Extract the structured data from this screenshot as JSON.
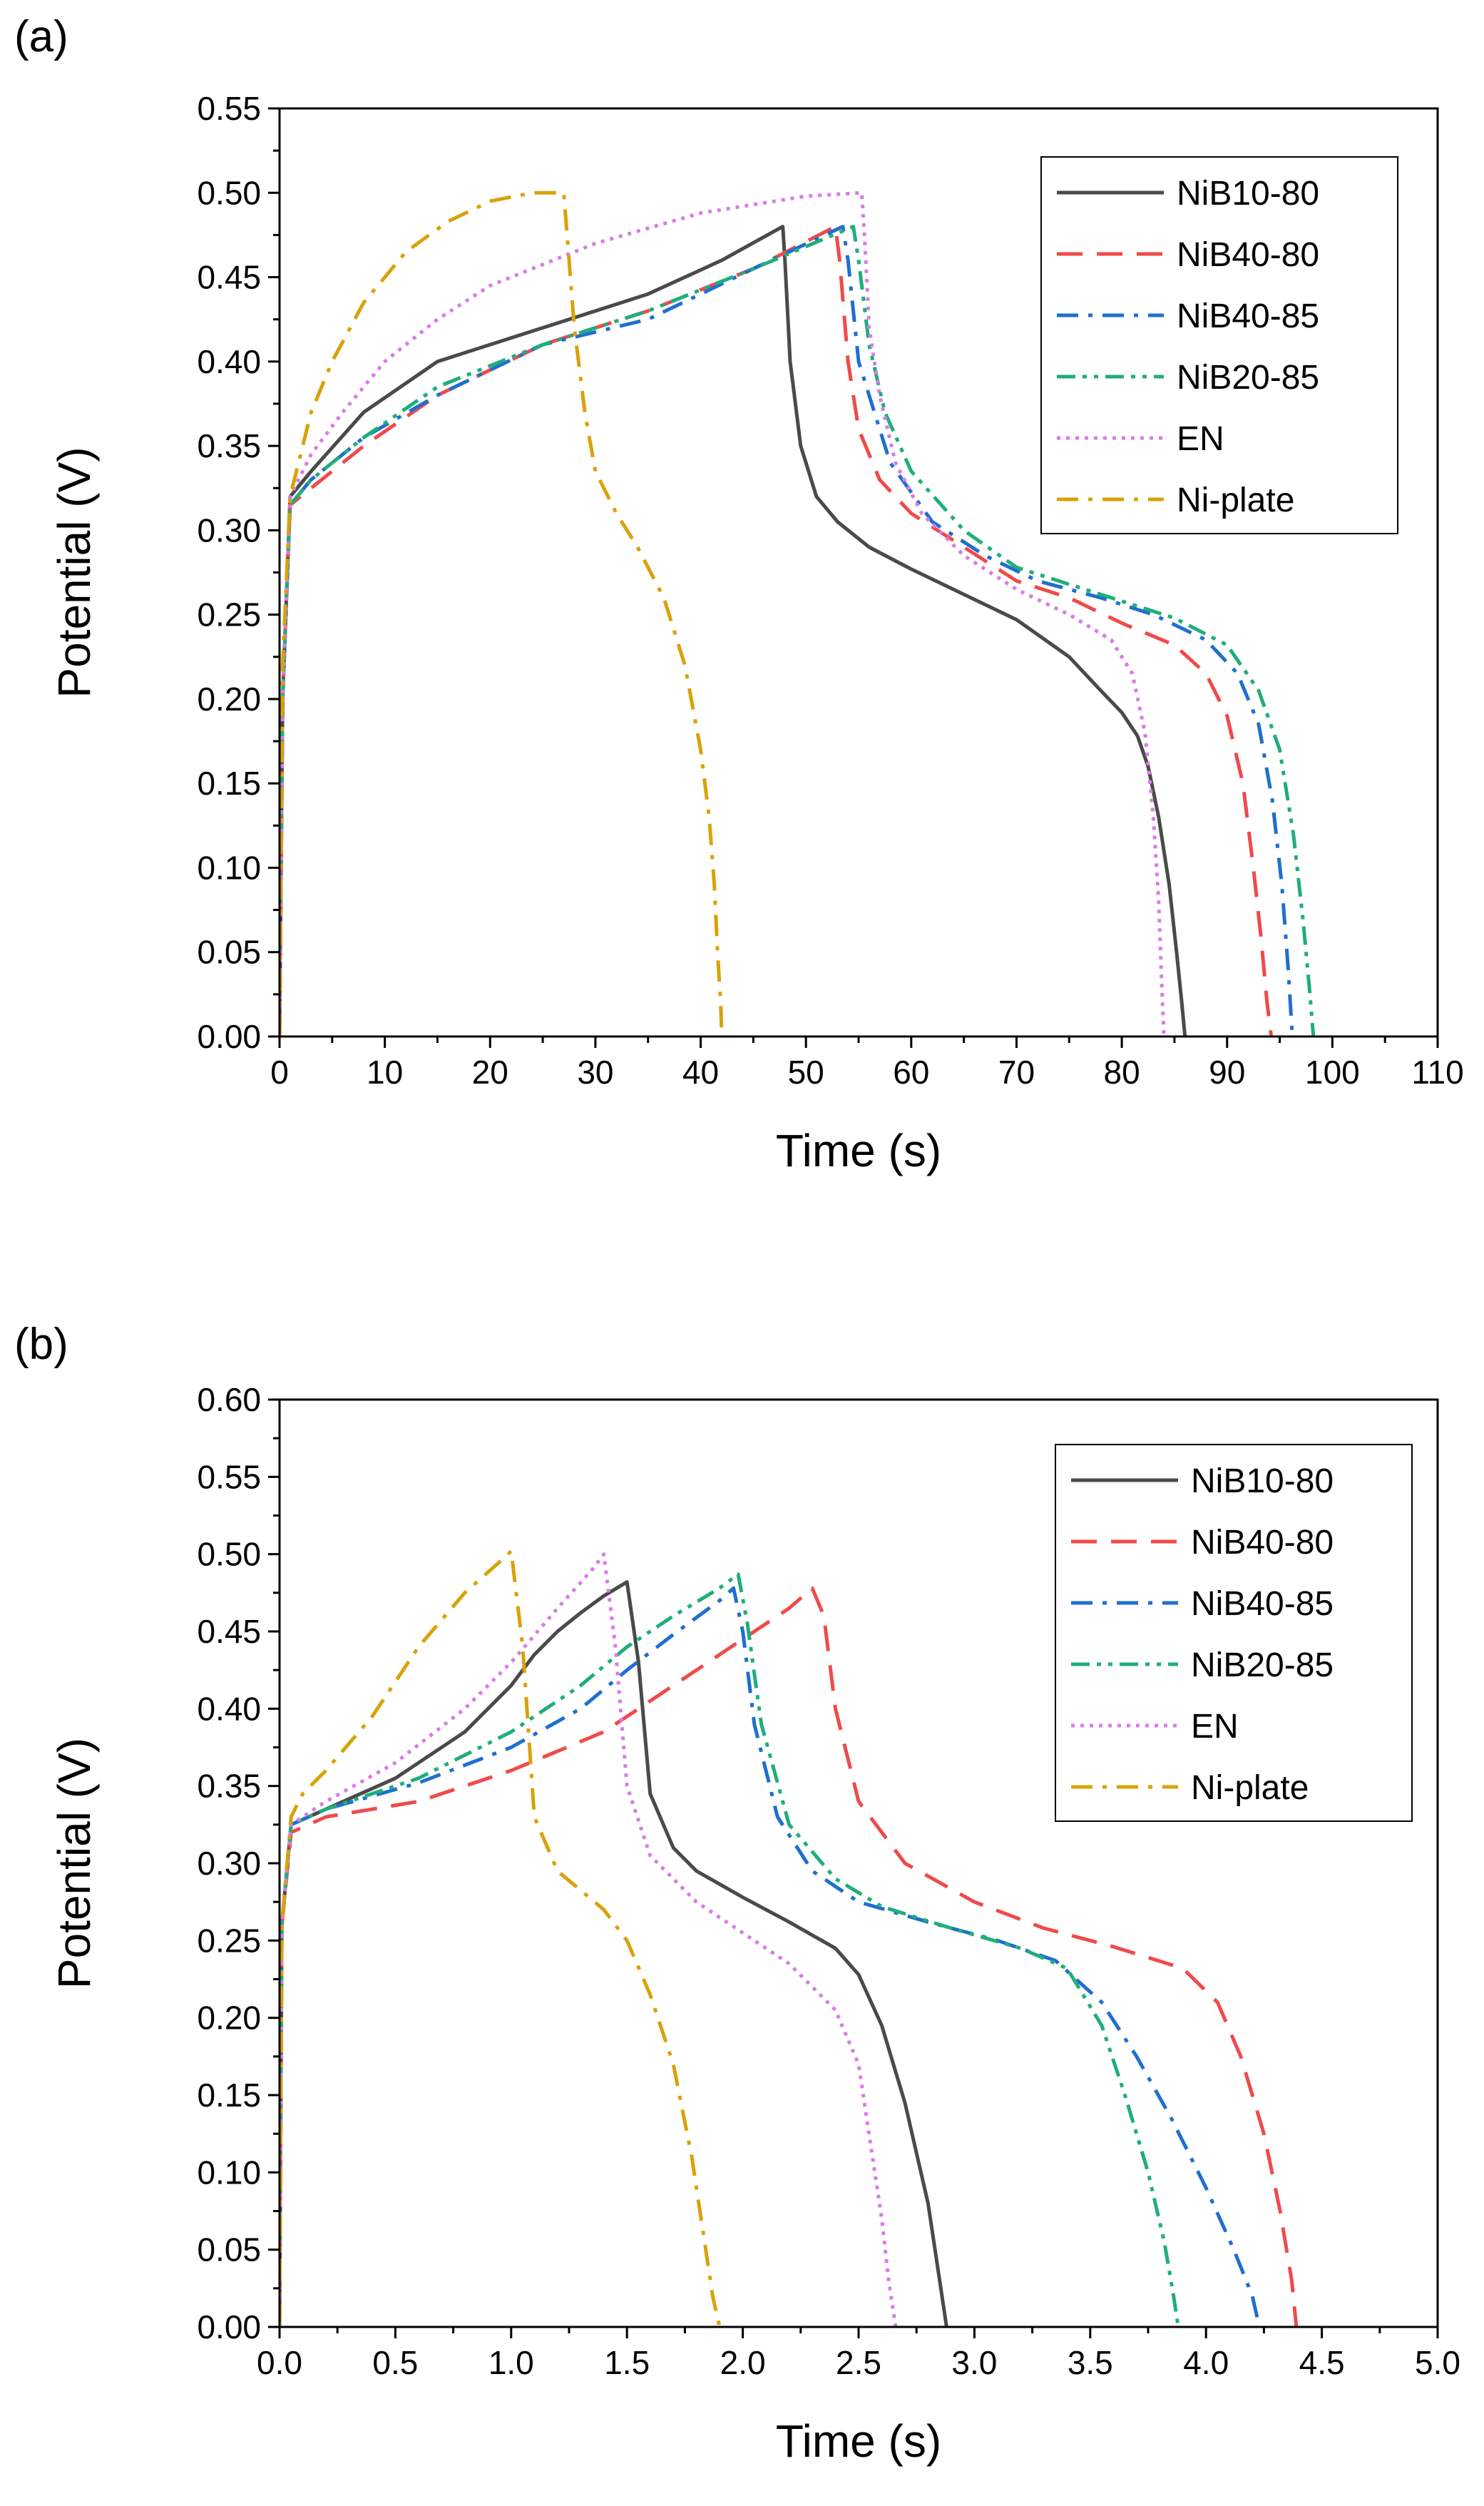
{
  "figure": {
    "panels": [
      {
        "label": "(a)"
      },
      {
        "label": "(b)"
      }
    ]
  },
  "colors": {
    "NiB10-80": "#4a4a4a",
    "NiB40-80": "#f04a4a",
    "NiB40-85": "#1e6fd0",
    "NiB20-85": "#1fae7a",
    "EN": "#d97ce6",
    "Ni-plate": "#d9a20a"
  },
  "chart_data": [
    {
      "type": "line",
      "panel": "(a)",
      "xlabel": "Time (s)",
      "ylabel": "Potential (V)",
      "xlim": [
        0,
        110
      ],
      "ylim": [
        0,
        0.55
      ],
      "xticks": [
        "0",
        "10",
        "20",
        "30",
        "40",
        "50",
        "60",
        "70",
        "80",
        "90",
        "100",
        "110"
      ],
      "yticks": [
        "0.00",
        "0.05",
        "0.10",
        "0.15",
        "0.20",
        "0.25",
        "0.30",
        "0.35",
        "0.40",
        "0.45",
        "0.50",
        "0.55"
      ],
      "legend": "top-right",
      "series": [
        {
          "name": "NiB10-80",
          "dash": "solid",
          "x": [
            0,
            0.3,
            1,
            3,
            8,
            15,
            25,
            35,
            42,
            47.8,
            48,
            48.5,
            49.5,
            51,
            53,
            56,
            60,
            65,
            70,
            75,
            78,
            80,
            81.5,
            82.5,
            83.5,
            84.5,
            85.2,
            85.7,
            86
          ],
          "y": [
            0,
            0.2,
            0.32,
            0.335,
            0.37,
            0.4,
            0.42,
            0.44,
            0.46,
            0.48,
            0.46,
            0.4,
            0.35,
            0.32,
            0.305,
            0.29,
            0.277,
            0.262,
            0.247,
            0.225,
            0.205,
            0.192,
            0.178,
            0.16,
            0.13,
            0.09,
            0.05,
            0.02,
            0
          ]
        },
        {
          "name": "NiB40-80",
          "dash": "long-dash",
          "x": [
            0,
            0.3,
            1,
            3,
            8,
            15,
            25,
            35,
            45,
            52.8,
            53.2,
            54,
            55,
            57,
            60,
            65,
            70,
            75,
            80,
            85,
            88,
            90,
            91.5,
            92.5,
            93.2,
            93.8,
            94.2
          ],
          "y": [
            0,
            0.2,
            0.315,
            0.325,
            0.35,
            0.38,
            0.41,
            0.43,
            0.455,
            0.48,
            0.46,
            0.4,
            0.36,
            0.33,
            0.31,
            0.29,
            0.27,
            0.26,
            0.245,
            0.232,
            0.215,
            0.19,
            0.15,
            0.1,
            0.06,
            0.02,
            0
          ]
        },
        {
          "name": "NiB40-85",
          "dash": "dash-dot",
          "x": [
            0,
            0.3,
            1,
            3,
            8,
            15,
            25,
            35,
            45,
            53.5,
            54,
            55,
            56.5,
            58,
            62,
            67,
            72,
            78,
            83,
            88,
            91,
            93,
            94.3,
            95.2,
            95.8,
            96.2
          ],
          "y": [
            0,
            0.2,
            0.315,
            0.33,
            0.355,
            0.38,
            0.41,
            0.425,
            0.455,
            0.48,
            0.46,
            0.4,
            0.37,
            0.34,
            0.305,
            0.285,
            0.27,
            0.26,
            0.25,
            0.235,
            0.215,
            0.185,
            0.14,
            0.09,
            0.04,
            0
          ]
        },
        {
          "name": "NiB20-85",
          "dash": "dash-dot-dot",
          "x": [
            0,
            0.3,
            1,
            3,
            8,
            15,
            25,
            35,
            45,
            54.5,
            55,
            56,
            57.5,
            60,
            65,
            70,
            75,
            80,
            85,
            90,
            93,
            95,
            96.3,
            97.2,
            97.8,
            98.2
          ],
          "y": [
            0,
            0.2,
            0.315,
            0.33,
            0.355,
            0.385,
            0.41,
            0.43,
            0.455,
            0.48,
            0.46,
            0.41,
            0.37,
            0.335,
            0.3,
            0.278,
            0.268,
            0.258,
            0.248,
            0.232,
            0.205,
            0.17,
            0.12,
            0.07,
            0.03,
            0
          ]
        },
        {
          "name": "EN",
          "dash": "dot",
          "x": [
            0,
            0.3,
            1,
            3,
            6,
            10,
            15,
            20,
            30,
            40,
            50,
            55.3,
            55.6,
            56,
            57,
            58.5,
            61,
            65,
            70,
            75,
            79,
            81,
            82.2,
            83,
            83.5,
            83.8,
            84
          ],
          "y": [
            0,
            0.2,
            0.32,
            0.345,
            0.37,
            0.4,
            0.425,
            0.445,
            0.47,
            0.488,
            0.498,
            0.5,
            0.47,
            0.42,
            0.38,
            0.34,
            0.31,
            0.285,
            0.265,
            0.25,
            0.235,
            0.215,
            0.18,
            0.13,
            0.08,
            0.03,
            0
          ]
        },
        {
          "name": "Ni-plate",
          "dash": "dash-dot",
          "x": [
            0,
            0.3,
            1,
            3,
            5,
            8,
            12,
            16,
            20,
            24,
            26,
            27,
            27.5,
            28,
            29,
            30,
            32,
            34,
            36.5,
            38.5,
            40,
            40.8,
            41.3,
            41.6,
            41.9,
            42
          ],
          "y": [
            0,
            0.22,
            0.32,
            0.37,
            0.4,
            0.435,
            0.465,
            0.483,
            0.495,
            0.5,
            0.5,
            0.5,
            0.46,
            0.42,
            0.37,
            0.335,
            0.31,
            0.29,
            0.26,
            0.22,
            0.17,
            0.13,
            0.09,
            0.05,
            0.02,
            0
          ]
        }
      ]
    },
    {
      "type": "line",
      "panel": "(b)",
      "xlabel": "Time (s)",
      "ylabel": "Potential (V)",
      "xlim": [
        0,
        5.0
      ],
      "ylim": [
        0,
        0.6
      ],
      "xticks": [
        "0.0",
        "0.5",
        "1.0",
        "1.5",
        "2.0",
        "2.5",
        "3.0",
        "3.5",
        "4.0",
        "4.5",
        "5.0"
      ],
      "yticks": [
        "0.00",
        "0.05",
        "0.10",
        "0.15",
        "0.20",
        "0.25",
        "0.30",
        "0.35",
        "0.40",
        "0.45",
        "0.50",
        "0.55",
        "0.60"
      ],
      "legend": "top-right",
      "series": [
        {
          "name": "NiB10-80",
          "dash": "solid",
          "x": [
            0,
            0.01,
            0.05,
            0.2,
            0.5,
            0.8,
            1.0,
            1.1,
            1.2,
            1.3,
            1.4,
            1.5,
            1.55,
            1.6,
            1.7,
            1.8,
            2.0,
            2.2,
            2.4,
            2.5,
            2.6,
            2.7,
            2.8,
            2.85,
            2.88
          ],
          "y": [
            0,
            0.26,
            0.325,
            0.335,
            0.355,
            0.385,
            0.415,
            0.435,
            0.45,
            0.462,
            0.473,
            0.482,
            0.43,
            0.345,
            0.31,
            0.295,
            0.278,
            0.262,
            0.245,
            0.228,
            0.195,
            0.145,
            0.08,
            0.03,
            0
          ]
        },
        {
          "name": "NiB40-80",
          "dash": "long-dash",
          "x": [
            0,
            0.01,
            0.05,
            0.2,
            0.6,
            1.0,
            1.4,
            1.6,
            1.8,
            2.0,
            2.2,
            2.3,
            2.35,
            2.4,
            2.5,
            2.7,
            3.0,
            3.3,
            3.6,
            3.9,
            4.05,
            4.15,
            4.25,
            4.32,
            4.37,
            4.39
          ],
          "y": [
            0,
            0.26,
            0.32,
            0.33,
            0.34,
            0.36,
            0.385,
            0.405,
            0.425,
            0.445,
            0.465,
            0.478,
            0.46,
            0.4,
            0.34,
            0.3,
            0.275,
            0.258,
            0.246,
            0.232,
            0.21,
            0.175,
            0.125,
            0.075,
            0.03,
            0
          ]
        },
        {
          "name": "NiB40-85",
          "dash": "dash-dot",
          "x": [
            0,
            0.01,
            0.05,
            0.2,
            0.6,
            1.0,
            1.3,
            1.5,
            1.7,
            1.9,
            1.96,
            2.0,
            2.05,
            2.15,
            2.3,
            2.5,
            2.8,
            3.1,
            3.35,
            3.55,
            3.7,
            3.85,
            4.0,
            4.12,
            4.2,
            4.23
          ],
          "y": [
            0,
            0.26,
            0.325,
            0.335,
            0.352,
            0.375,
            0.4,
            0.425,
            0.448,
            0.47,
            0.478,
            0.45,
            0.39,
            0.33,
            0.295,
            0.275,
            0.262,
            0.25,
            0.237,
            0.21,
            0.175,
            0.135,
            0.09,
            0.05,
            0.02,
            0
          ]
        },
        {
          "name": "NiB20-85",
          "dash": "dash-dot-dot",
          "x": [
            0,
            0.01,
            0.05,
            0.2,
            0.6,
            1.0,
            1.3,
            1.5,
            1.7,
            1.9,
            1.98,
            2.02,
            2.08,
            2.2,
            2.4,
            2.6,
            2.9,
            3.2,
            3.4,
            3.55,
            3.65,
            3.75,
            3.82,
            3.86,
            3.88
          ],
          "y": [
            0,
            0.26,
            0.325,
            0.335,
            0.355,
            0.385,
            0.415,
            0.44,
            0.46,
            0.478,
            0.487,
            0.455,
            0.39,
            0.325,
            0.29,
            0.272,
            0.258,
            0.245,
            0.232,
            0.195,
            0.15,
            0.1,
            0.055,
            0.02,
            0
          ]
        },
        {
          "name": "EN",
          "dash": "dot",
          "x": [
            0,
            0.01,
            0.05,
            0.2,
            0.5,
            0.8,
            1.0,
            1.2,
            1.35,
            1.4,
            1.45,
            1.5,
            1.6,
            1.8,
            2.0,
            2.2,
            2.4,
            2.5,
            2.55,
            2.6,
            2.63,
            2.66
          ],
          "y": [
            0,
            0.26,
            0.325,
            0.34,
            0.365,
            0.4,
            0.43,
            0.465,
            0.49,
            0.5,
            0.44,
            0.35,
            0.305,
            0.275,
            0.255,
            0.235,
            0.205,
            0.17,
            0.12,
            0.07,
            0.03,
            0
          ]
        },
        {
          "name": "Ni-plate",
          "dash": "dash-dot",
          "x": [
            0,
            0.01,
            0.05,
            0.1,
            0.2,
            0.4,
            0.6,
            0.8,
            0.95,
            1.0,
            1.05,
            1.1,
            1.2,
            1.4,
            1.5,
            1.6,
            1.7,
            1.78,
            1.83,
            1.87,
            1.9
          ],
          "y": [
            0,
            0.26,
            0.33,
            0.345,
            0.36,
            0.395,
            0.44,
            0.475,
            0.495,
            0.502,
            0.44,
            0.33,
            0.295,
            0.27,
            0.25,
            0.215,
            0.17,
            0.11,
            0.06,
            0.02,
            0
          ]
        }
      ]
    }
  ]
}
